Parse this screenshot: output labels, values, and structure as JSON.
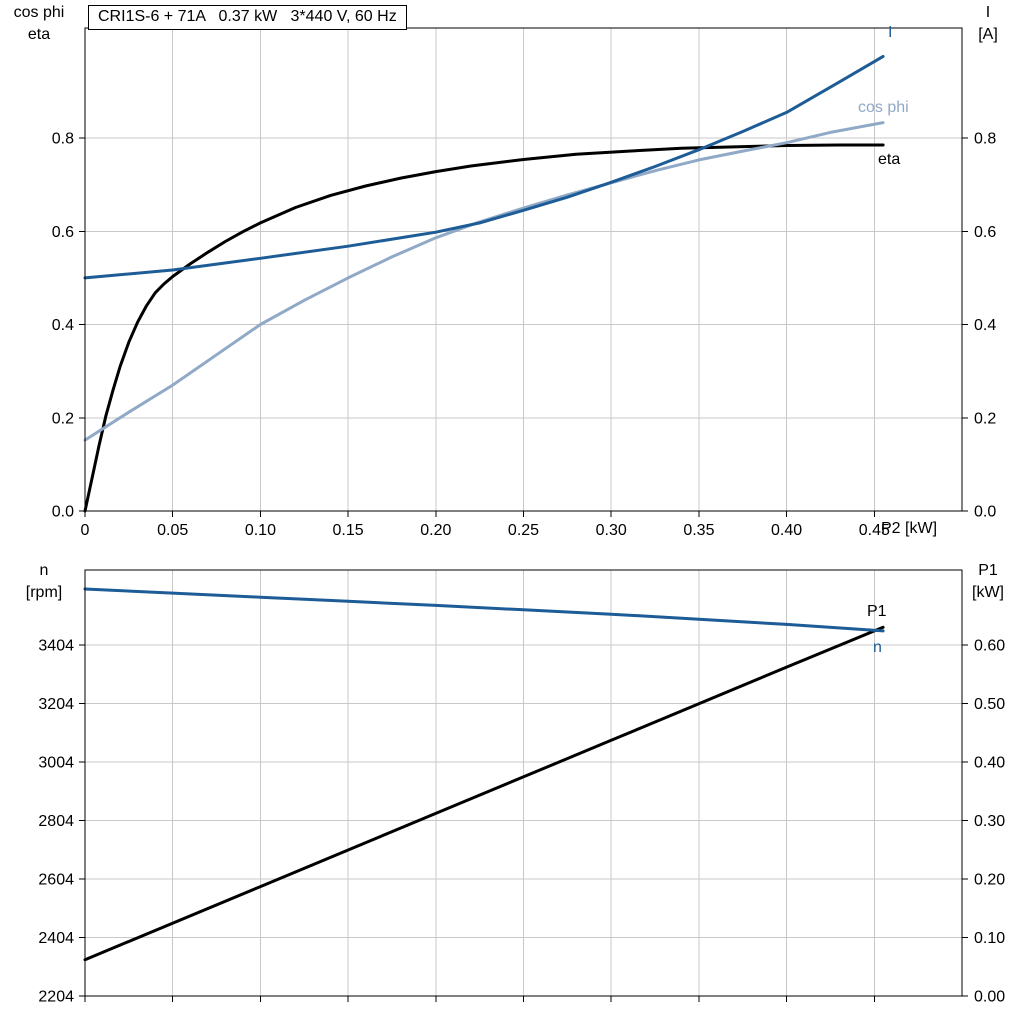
{
  "title": "CRI1S-6 + 71A   0.37 kW   3*440 V, 60 Hz",
  "colors": {
    "dark_blue": "#1d5c96",
    "light_blue": "#8fa9c7",
    "black": "#000000",
    "grid": "#c8c8c8",
    "frame": "#000000"
  },
  "axis_labels": {
    "top_left": [
      "cos phi",
      "eta"
    ],
    "top_right": [
      "I",
      "[A]"
    ],
    "x_axis": "P2 [kW]",
    "bottom_left": [
      "n",
      "[rpm]"
    ],
    "bottom_right": [
      "P1",
      "[kW]"
    ]
  },
  "curve_labels": {
    "current": "I",
    "cos_phi": "cos phi",
    "eta": "eta",
    "p1": "P1",
    "speed": "n"
  },
  "chart_data": [
    {
      "type": "line",
      "name": "motor-electrical-curves-vs-p2",
      "xlabel": "P2 [kW]",
      "ylabel_left": "cos phi / eta",
      "ylabel_right": "I [A]",
      "xlim": [
        0,
        0.5
      ],
      "ylim": [
        0,
        1.036
      ],
      "y2lim": [
        0,
        1.036
      ],
      "grid": true,
      "layout": {
        "area": [
          85,
          28,
          962,
          511
        ]
      },
      "xticks": {
        "values": [
          0,
          0.05,
          0.1,
          0.15,
          0.2,
          0.25,
          0.3,
          0.35,
          0.4,
          0.45
        ],
        "labels": [
          "0",
          "0.05",
          "0.10",
          "0.15",
          "0.20",
          "0.25",
          "0.30",
          "0.35",
          "0.40",
          "0.45"
        ]
      },
      "yticks": {
        "values": [
          0,
          0.2,
          0.4,
          0.6,
          0.8
        ],
        "labels": [
          "0.0",
          "0.2",
          "0.4",
          "0.6",
          "0.8"
        ]
      },
      "y2ticks": {
        "values": [
          0,
          0.2,
          0.4,
          0.6,
          0.8
        ],
        "labels": [
          "0.0",
          "0.2",
          "0.4",
          "0.6",
          "0.8"
        ]
      },
      "series": [
        {
          "name": "eta",
          "color": "black",
          "axis": "left",
          "points": [
            [
              0,
              0
            ],
            [
              0.004,
              0.07
            ],
            [
              0.008,
              0.14
            ],
            [
              0.012,
              0.205
            ],
            [
              0.016,
              0.26
            ],
            [
              0.02,
              0.31
            ],
            [
              0.025,
              0.362
            ],
            [
              0.03,
              0.405
            ],
            [
              0.035,
              0.44
            ],
            [
              0.04,
              0.468
            ],
            [
              0.045,
              0.487
            ],
            [
              0.05,
              0.503
            ],
            [
              0.06,
              0.53
            ],
            [
              0.07,
              0.555
            ],
            [
              0.08,
              0.578
            ],
            [
              0.09,
              0.599
            ],
            [
              0.1,
              0.618
            ],
            [
              0.12,
              0.651
            ],
            [
              0.14,
              0.677
            ],
            [
              0.16,
              0.697
            ],
            [
              0.18,
              0.714
            ],
            [
              0.2,
              0.728
            ],
            [
              0.22,
              0.74
            ],
            [
              0.25,
              0.754
            ],
            [
              0.28,
              0.765
            ],
            [
              0.31,
              0.772
            ],
            [
              0.34,
              0.778
            ],
            [
              0.37,
              0.781
            ],
            [
              0.4,
              0.784
            ],
            [
              0.43,
              0.785
            ],
            [
              0.455,
              0.785
            ]
          ]
        },
        {
          "name": "cos phi",
          "color": "light_blue",
          "axis": "left",
          "points": [
            [
              0,
              0.152
            ],
            [
              0.025,
              0.212
            ],
            [
              0.05,
              0.27
            ],
            [
              0.075,
              0.335
            ],
            [
              0.1,
              0.4
            ],
            [
              0.125,
              0.452
            ],
            [
              0.15,
              0.5
            ],
            [
              0.175,
              0.545
            ],
            [
              0.2,
              0.586
            ],
            [
              0.225,
              0.62
            ],
            [
              0.25,
              0.65
            ],
            [
              0.275,
              0.678
            ],
            [
              0.3,
              0.704
            ],
            [
              0.325,
              0.73
            ],
            [
              0.35,
              0.753
            ],
            [
              0.375,
              0.772
            ],
            [
              0.4,
              0.79
            ],
            [
              0.425,
              0.812
            ],
            [
              0.455,
              0.833
            ]
          ]
        },
        {
          "name": "I",
          "color": "dark_blue",
          "axis": "left",
          "points": [
            [
              0,
              0.5
            ],
            [
              0.05,
              0.517
            ],
            [
              0.1,
              0.542
            ],
            [
              0.15,
              0.568
            ],
            [
              0.2,
              0.598
            ],
            [
              0.225,
              0.618
            ],
            [
              0.25,
              0.645
            ],
            [
              0.275,
              0.673
            ],
            [
              0.3,
              0.705
            ],
            [
              0.325,
              0.739
            ],
            [
              0.35,
              0.775
            ],
            [
              0.375,
              0.814
            ],
            [
              0.4,
              0.855
            ],
            [
              0.43,
              0.92
            ],
            [
              0.455,
              0.975
            ]
          ]
        }
      ]
    },
    {
      "type": "line",
      "name": "speed-and-input-power-vs-p2",
      "xlabel": "",
      "ylabel_left": "n [rpm]",
      "ylabel_right": "P1 [kW]",
      "xlim": [
        0,
        0.5
      ],
      "ylim": [
        2204,
        3660
      ],
      "y2lim": [
        0,
        0.728
      ],
      "grid": true,
      "layout": {
        "area": [
          85,
          570,
          962,
          996
        ]
      },
      "xticks": {
        "values": [
          0,
          0.05,
          0.1,
          0.15,
          0.2,
          0.25,
          0.3,
          0.35,
          0.4,
          0.45
        ],
        "labels": null
      },
      "yticks": {
        "values": [
          2204,
          2404,
          2604,
          2804,
          3004,
          3204,
          3404
        ],
        "labels": [
          "2204",
          "2404",
          "2604",
          "2804",
          "3004",
          "3204",
          "3404"
        ]
      },
      "y2ticks": {
        "values": [
          0,
          0.1,
          0.2,
          0.3,
          0.4,
          0.5,
          0.6
        ],
        "labels": [
          "0.00",
          "0.10",
          "0.20",
          "0.30",
          "0.40",
          "0.50",
          "0.60"
        ]
      },
      "series": [
        {
          "name": "P1",
          "color": "black",
          "axis": "right",
          "points": [
            [
              0,
              0.062
            ],
            [
              0.1,
              0.187
            ],
            [
              0.2,
              0.312
            ],
            [
              0.3,
              0.437
            ],
            [
              0.4,
              0.562
            ],
            [
              0.455,
              0.63
            ]
          ]
        },
        {
          "name": "n",
          "color": "dark_blue",
          "axis": "left",
          "points": [
            [
              0,
              3595
            ],
            [
              0.05,
              3581
            ],
            [
              0.1,
              3567
            ],
            [
              0.15,
              3553
            ],
            [
              0.2,
              3539
            ],
            [
              0.25,
              3524
            ],
            [
              0.3,
              3509
            ],
            [
              0.35,
              3492
            ],
            [
              0.4,
              3474
            ],
            [
              0.455,
              3452
            ]
          ]
        }
      ]
    }
  ]
}
